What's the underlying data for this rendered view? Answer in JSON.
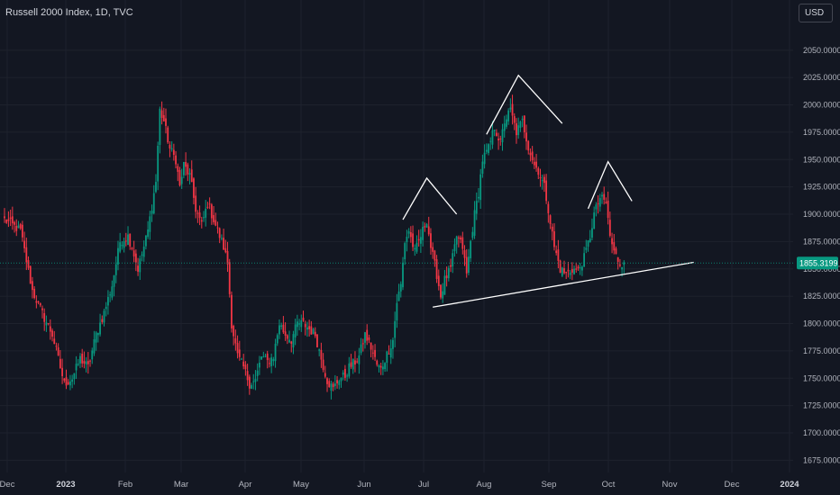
{
  "header": {
    "title": "Russell 2000 Index, 1D, TVC",
    "currency": "USD"
  },
  "chart_data": {
    "type": "candlestick",
    "symbol": "Russell 2000 Index",
    "interval": "1D",
    "source": "TVC",
    "last_price": "1855.3199",
    "ylim": [
      1660,
      2080
    ],
    "y_ticks": [
      "1675.0000",
      "1700.0000",
      "1725.0000",
      "1750.0000",
      "1775.0000",
      "1800.0000",
      "1825.0000",
      "1850.0000",
      "1875.0000",
      "1900.0000",
      "1925.0000",
      "1950.0000",
      "1975.0000",
      "2000.0000",
      "2025.0000",
      "2050.0000"
    ],
    "x_ticks": [
      {
        "label": "Dec",
        "bold": false
      },
      {
        "label": "2023",
        "bold": true
      },
      {
        "label": "Feb",
        "bold": false
      },
      {
        "label": "Mar",
        "bold": false
      },
      {
        "label": "Apr",
        "bold": false
      },
      {
        "label": "May",
        "bold": false
      },
      {
        "label": "Jun",
        "bold": false
      },
      {
        "label": "Jul",
        "bold": false
      },
      {
        "label": "Aug",
        "bold": false
      },
      {
        "label": "Sep",
        "bold": false
      },
      {
        "label": "Oct",
        "bold": false
      },
      {
        "label": "Nov",
        "bold": false
      },
      {
        "label": "Dec",
        "bold": false
      },
      {
        "label": "2024",
        "bold": true
      }
    ],
    "path_anchors": [
      [
        0,
        1895
      ],
      [
        8,
        1885
      ],
      [
        14,
        1830
      ],
      [
        20,
        1805
      ],
      [
        24,
        1790
      ],
      [
        28,
        1760
      ],
      [
        30,
        1745
      ],
      [
        34,
        1750
      ],
      [
        38,
        1768
      ],
      [
        42,
        1760
      ],
      [
        46,
        1790
      ],
      [
        50,
        1810
      ],
      [
        54,
        1835
      ],
      [
        58,
        1875
      ],
      [
        62,
        1880
      ],
      [
        64,
        1870
      ],
      [
        67,
        1850
      ],
      [
        70,
        1870
      ],
      [
        72,
        1885
      ],
      [
        76,
        1930
      ],
      [
        78,
        1995
      ],
      [
        80,
        1985
      ],
      [
        83,
        1960
      ],
      [
        86,
        1950
      ],
      [
        88,
        1925
      ],
      [
        90,
        1945
      ],
      [
        93,
        1935
      ],
      [
        96,
        1905
      ],
      [
        99,
        1890
      ],
      [
        102,
        1910
      ],
      [
        105,
        1895
      ],
      [
        108,
        1880
      ],
      [
        110,
        1870
      ],
      [
        112,
        1855
      ],
      [
        114,
        1800
      ],
      [
        117,
        1770
      ],
      [
        120,
        1760
      ],
      [
        123,
        1745
      ],
      [
        126,
        1748
      ],
      [
        129,
        1770
      ],
      [
        132,
        1765
      ],
      [
        135,
        1770
      ],
      [
        138,
        1800
      ],
      [
        141,
        1790
      ],
      [
        144,
        1785
      ],
      [
        147,
        1800
      ],
      [
        150,
        1800
      ],
      [
        153,
        1795
      ],
      [
        156,
        1790
      ],
      [
        159,
        1768
      ],
      [
        162,
        1748
      ],
      [
        165,
        1740
      ],
      [
        168,
        1750
      ],
      [
        171,
        1752
      ],
      [
        173,
        1760
      ],
      [
        176,
        1765
      ],
      [
        178,
        1770
      ],
      [
        181,
        1790
      ],
      [
        184,
        1778
      ],
      [
        187,
        1762
      ],
      [
        189,
        1758
      ],
      [
        192,
        1772
      ],
      [
        195,
        1785
      ],
      [
        197,
        1820
      ],
      [
        199,
        1835
      ],
      [
        201,
        1875
      ],
      [
        203,
        1885
      ],
      [
        206,
        1865
      ],
      [
        209,
        1880
      ],
      [
        212,
        1895
      ],
      [
        214,
        1870
      ],
      [
        217,
        1845
      ],
      [
        219,
        1825
      ],
      [
        221,
        1840
      ],
      [
        224,
        1850
      ],
      [
        227,
        1880
      ],
      [
        230,
        1870
      ],
      [
        232,
        1845
      ],
      [
        234,
        1875
      ],
      [
        236,
        1900
      ],
      [
        238,
        1920
      ],
      [
        240,
        1950
      ],
      [
        243,
        1960
      ],
      [
        246,
        1980
      ],
      [
        249,
        1965
      ],
      [
        251,
        1985
      ],
      [
        254,
        1995
      ],
      [
        257,
        1975
      ],
      [
        260,
        1985
      ],
      [
        263,
        1962
      ],
      [
        266,
        1945
      ],
      [
        268,
        1940
      ],
      [
        271,
        1925
      ],
      [
        273,
        1905
      ],
      [
        276,
        1870
      ],
      [
        279,
        1850
      ],
      [
        282,
        1845
      ],
      [
        285,
        1850
      ],
      [
        288,
        1848
      ],
      [
        291,
        1860
      ],
      [
        294,
        1880
      ],
      [
        296,
        1900
      ],
      [
        299,
        1915
      ],
      [
        302,
        1910
      ],
      [
        304,
        1880
      ],
      [
        306,
        1865
      ],
      [
        309,
        1855
      ],
      [
        311,
        1856
      ]
    ],
    "annotations": [
      {
        "type": "trendline",
        "from": [
          215,
          1815
        ],
        "to": [
          346,
          1856
        ]
      },
      {
        "type": "peak",
        "points": [
          [
            200,
            1895
          ],
          [
            212,
            1933
          ],
          [
            227,
            1900
          ]
        ]
      },
      {
        "type": "peak",
        "points": [
          [
            242,
            1973
          ],
          [
            258,
            2027
          ],
          [
            280,
            1983
          ]
        ]
      },
      {
        "type": "peak",
        "points": [
          [
            293,
            1905
          ],
          [
            303,
            1948
          ],
          [
            315,
            1912
          ]
        ]
      }
    ]
  },
  "colors": {
    "background": "#131722",
    "up": "#089981",
    "down": "#f23645",
    "text": "#b2b5be",
    "grid": "#1e222d",
    "price_label": "#089981",
    "annotation": "#ffffff"
  }
}
